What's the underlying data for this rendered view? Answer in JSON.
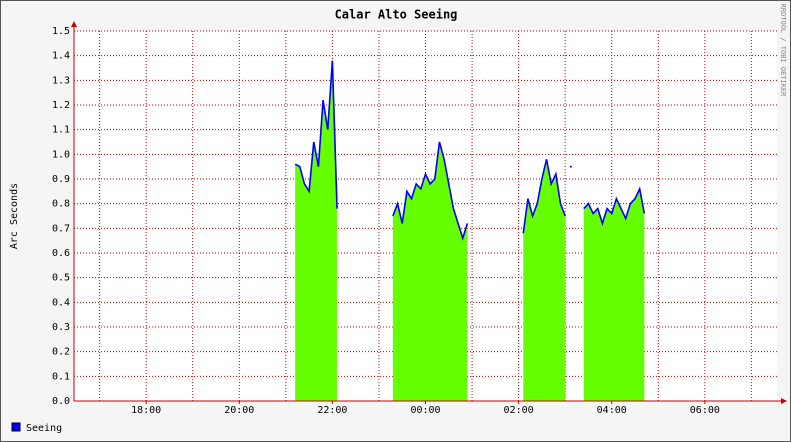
{
  "chart_data": {
    "type": "area",
    "title": "Calar Alto Seeing",
    "ylabel": "Arc Seconds",
    "side_label": "RRDTOOL / TOBI OETIKER",
    "x": [
      21.2,
      21.3,
      21.4,
      21.5,
      21.6,
      21.7,
      21.8,
      21.9,
      22.0,
      22.1,
      22.2,
      23.3,
      23.4,
      23.5,
      23.6,
      23.7,
      23.8,
      23.9,
      24.0,
      24.1,
      24.2,
      24.3,
      24.4,
      24.5,
      24.6,
      24.7,
      24.8,
      24.9,
      25.0,
      26.1,
      26.2,
      26.3,
      26.4,
      26.5,
      26.6,
      26.7,
      26.8,
      26.9,
      27.0,
      27.05,
      27.1,
      27.2,
      27.4,
      27.5,
      27.6,
      27.7,
      27.8,
      27.9,
      28.0,
      28.1,
      28.2,
      28.3,
      28.4,
      28.5,
      28.6,
      28.7
    ],
    "series": [
      {
        "name": "Seeing",
        "color": "#0000ff",
        "fill": "#66ff00",
        "values": [
          0.96,
          0.95,
          0.88,
          0.85,
          1.05,
          0.95,
          1.22,
          1.1,
          1.38,
          0.78,
          null,
          0.75,
          0.8,
          0.72,
          0.85,
          0.82,
          0.88,
          0.86,
          0.92,
          0.88,
          0.9,
          1.05,
          0.98,
          0.88,
          0.78,
          0.72,
          0.66,
          0.72,
          null,
          0.68,
          0.82,
          0.75,
          0.8,
          0.9,
          0.98,
          0.88,
          0.92,
          0.8,
          0.75,
          null,
          0.95,
          null,
          0.78,
          0.8,
          0.76,
          0.78,
          0.72,
          0.78,
          0.76,
          0.82,
          0.78,
          0.74,
          0.8,
          0.82,
          0.86,
          0.76
        ]
      }
    ],
    "xlim": [
      16.45,
      31.55
    ],
    "xticks": [
      {
        "value": 18,
        "label": "18:00"
      },
      {
        "value": 20,
        "label": "20:00"
      },
      {
        "value": 22,
        "label": "22:00"
      },
      {
        "value": 24,
        "label": "00:00"
      },
      {
        "value": 26,
        "label": "02:00"
      },
      {
        "value": 28,
        "label": "04:00"
      },
      {
        "value": 30,
        "label": "06:00"
      }
    ],
    "xgrid": [
      17,
      18,
      19,
      20,
      21,
      22,
      23,
      24,
      25,
      26,
      27,
      28,
      29,
      30,
      31
    ],
    "ylim": [
      0,
      1.5
    ],
    "yticks": [
      {
        "value": 0,
        "label": "0.0"
      },
      0.1,
      0.2,
      0.3,
      0.4,
      0.5,
      0.6,
      0.7,
      0.8,
      0.9,
      {
        "value": 1,
        "label": "1.0"
      },
      1.1,
      1.2,
      1.3,
      1.4,
      1.5
    ],
    "grid": true
  }
}
